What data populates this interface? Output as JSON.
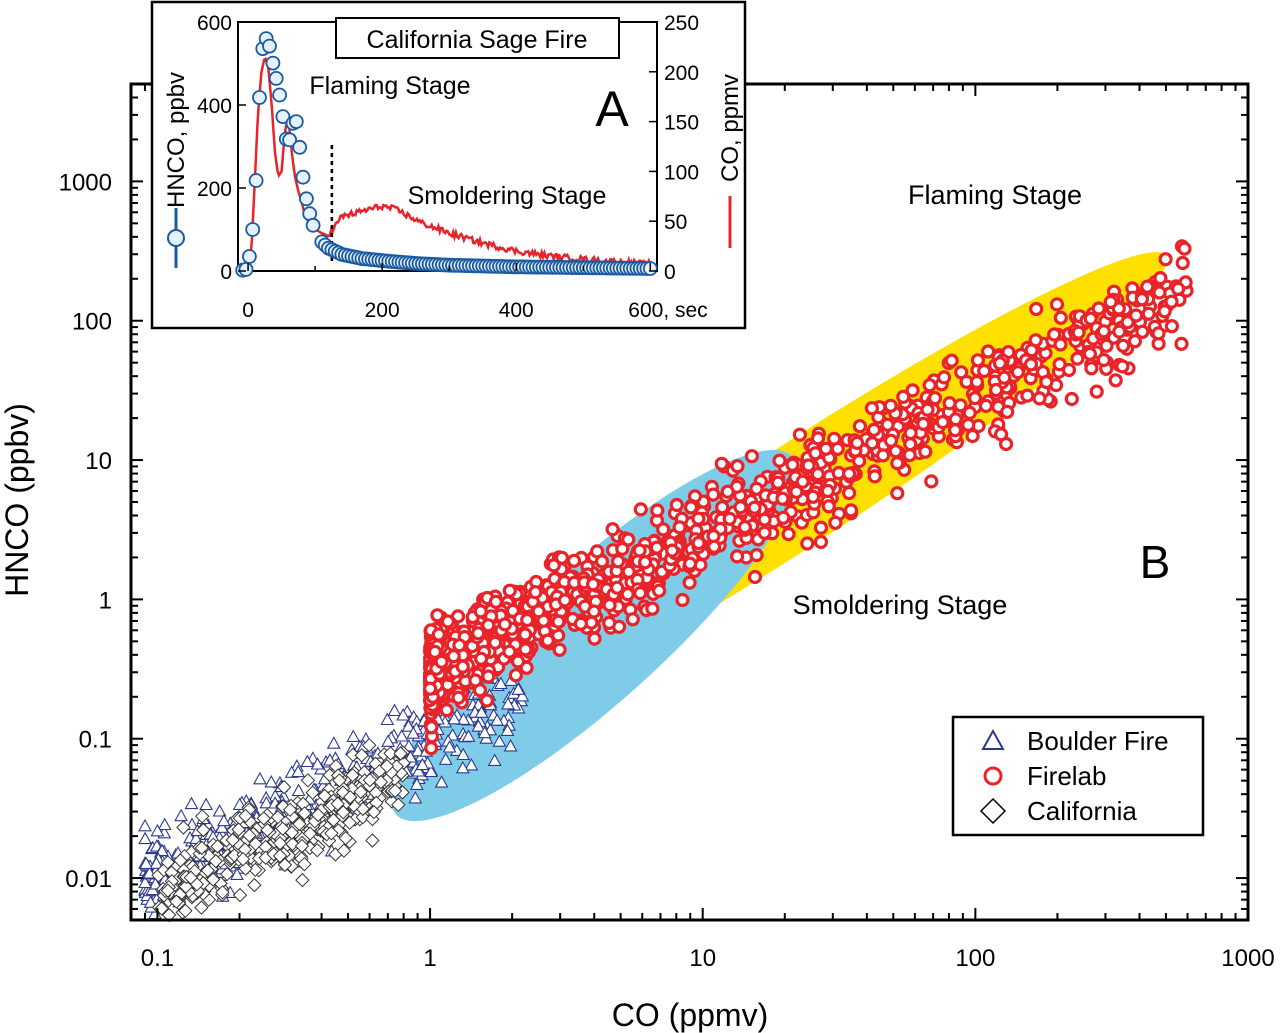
{
  "chart_data": [
    {
      "type": "scatter",
      "panel": "B",
      "xscale": "log",
      "yscale": "log",
      "xlim": [
        0.08,
        1000
      ],
      "ylim": [
        0.005,
        5000
      ],
      "xlabel": "CO (ppmv)",
      "ylabel": "HNCO (ppbv)",
      "x_ticks": [
        "0.1",
        "1",
        "10",
        "100",
        "1000"
      ],
      "y_ticks": [
        "0.01",
        "0.1",
        "1",
        "10",
        "100",
        "1000"
      ],
      "panel_label": "B",
      "legend": [
        "Boulder Fire",
        "Firelab",
        "California"
      ],
      "legend_position": "bottom-right",
      "regions": [
        {
          "name": "Flaming Stage",
          "label": "Flaming Stage",
          "color": "#ffe000",
          "center": [
            22,
            5.5
          ],
          "log_semi_major": 1.62,
          "log_semi_minor": 0.36,
          "angle_deg": 33
        },
        {
          "name": "Smoldering Stage",
          "label": "Smoldering Stage",
          "color": "#7fcce8",
          "center": [
            4.0,
            0.55
          ],
          "log_semi_major": 0.98,
          "log_semi_minor": 0.48,
          "angle_deg": 42
        }
      ],
      "series": [
        {
          "name": "Boulder Fire",
          "marker": "triangle",
          "color": "#2b3a8f",
          "fit": {
            "x_range": [
              0.09,
              2.2
            ],
            "slope": 1.0,
            "intercept_at_1": 0.1,
            "spread_decades": 0.28
          }
        },
        {
          "name": "Firelab",
          "marker": "circle",
          "color": "#e8242a",
          "fit": {
            "x_range": [
              1.0,
              600
            ],
            "slope": 0.98,
            "intercept_at_1": 0.3,
            "spread_decades": 0.3
          }
        },
        {
          "name": "California",
          "marker": "diamond",
          "color": "#333333",
          "fit": {
            "x_range": [
              0.1,
              0.8
            ],
            "slope": 1.0,
            "intercept_at_1": 0.07,
            "spread_decades": 0.25
          }
        }
      ]
    },
    {
      "type": "line",
      "panel": "A",
      "title": "California Sage Fire",
      "panel_label": "A",
      "xlim": [
        -15,
        610
      ],
      "xlabel": "sec",
      "x_ticks": [
        "0",
        "200",
        "400",
        "600, sec"
      ],
      "y_left_label": "HNCO, ppbv",
      "y_left_ticks": [
        "0",
        "200",
        "400",
        "600"
      ],
      "y_left_lim": [
        0,
        600
      ],
      "y_right_label": "CO, ppmv",
      "y_right_ticks": [
        "0",
        "50",
        "100",
        "150",
        "200",
        "250"
      ],
      "y_right_lim": [
        0,
        250
      ],
      "annotations": [
        "Flaming Stage",
        "Smoldering Stage"
      ],
      "stage_divider_x": 125,
      "series": [
        {
          "name": "CO",
          "axis": "right",
          "color": "#e8242a",
          "x": [
            0,
            5,
            10,
            15,
            20,
            25,
            30,
            35,
            40,
            45,
            50,
            55,
            60,
            65,
            70,
            75,
            80,
            85,
            90,
            100,
            110,
            120,
            130,
            140,
            160,
            180,
            200,
            220,
            240,
            260,
            300,
            350,
            400,
            450,
            500,
            550,
            600
          ],
          "y": [
            2,
            20,
            90,
            160,
            200,
            215,
            205,
            170,
            120,
            95,
            100,
            140,
            155,
            120,
            95,
            80,
            70,
            55,
            50,
            42,
            38,
            35,
            45,
            55,
            58,
            62,
            65,
            62,
            55,
            48,
            38,
            28,
            20,
            15,
            12,
            9,
            7
          ]
        },
        {
          "name": "HNCO",
          "axis": "left",
          "color": "#1a5aa0",
          "x": [
            -8,
            0,
            5,
            10,
            15,
            20,
            25,
            30,
            35,
            40,
            45,
            50,
            55,
            60,
            65,
            70,
            75,
            80,
            85,
            90,
            95,
            100,
            110,
            120,
            140,
            170,
            200,
            250,
            300,
            350,
            400,
            450,
            500,
            550,
            600
          ],
          "y": [
            2,
            5,
            80,
            130,
            350,
            520,
            560,
            560,
            515,
            480,
            440,
            400,
            330,
            300,
            340,
            380,
            330,
            250,
            190,
            150,
            120,
            95,
            70,
            55,
            40,
            30,
            25,
            18,
            14,
            12,
            10,
            9,
            8,
            7,
            6
          ]
        }
      ]
    }
  ]
}
